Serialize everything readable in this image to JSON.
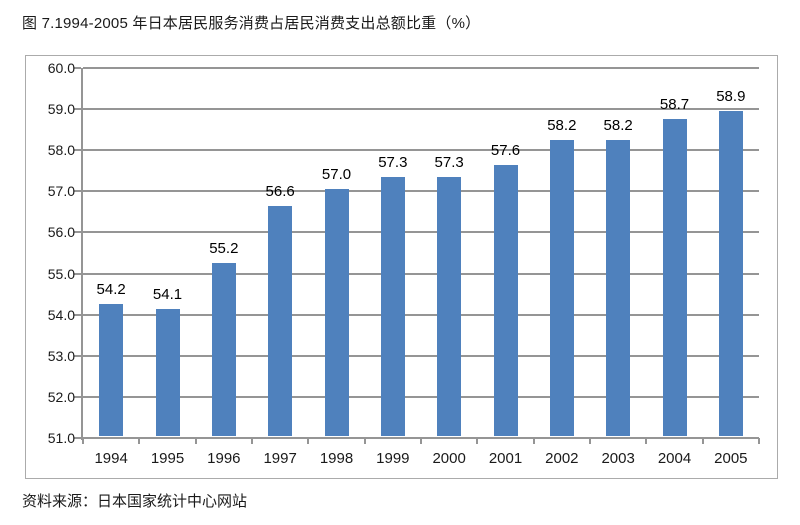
{
  "page": {
    "title": "图 7.1994-2005 年日本居民服务消费占居民消费支出总额比重（%）",
    "source": "资料来源：日本国家统计中心网站"
  },
  "chart_data": {
    "type": "bar",
    "title": "图 7.1994-2005 年日本居民服务消费占居民消费支出总额比重（%）",
    "categories": [
      "1994",
      "1995",
      "1996",
      "1997",
      "1998",
      "1999",
      "2000",
      "2001",
      "2002",
      "2003",
      "2004",
      "2005"
    ],
    "values": [
      54.2,
      54.1,
      55.2,
      56.6,
      57.0,
      57.3,
      57.3,
      57.6,
      58.2,
      58.2,
      58.7,
      58.9
    ],
    "data_labels": [
      "54.2",
      "54.1",
      "55.2",
      "56.6",
      "57.0",
      "57.3",
      "57.3",
      "57.6",
      "58.2",
      "58.2",
      "58.7",
      "58.9"
    ],
    "xlabel": "",
    "ylabel": "",
    "ylim": [
      51.0,
      60.0
    ],
    "ytick_step": 1.0,
    "ytick_labels": [
      "51.0",
      "52.0",
      "53.0",
      "54.0",
      "55.0",
      "56.0",
      "57.0",
      "58.0",
      "59.0",
      "60.0"
    ],
    "grid": true,
    "legend_position": "none",
    "colors": {
      "bar": "#4F81BD",
      "gridline": "#959595",
      "axis": "#959595",
      "frame_border": "#ababab",
      "text": "#1a1a1a"
    },
    "source": "资料来源：日本国家统计中心网站"
  }
}
